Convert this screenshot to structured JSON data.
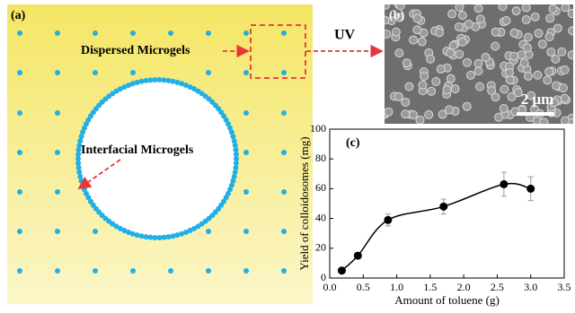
{
  "panel_a": {
    "label": "(a)",
    "dispersed": "Dispersed Microgels",
    "interfacial": "Interfacial Microgels",
    "uv": "UV"
  },
  "panel_b": {
    "label": "(b)",
    "scale_bar": "2 μm"
  },
  "chart_data": {
    "type": "scatter",
    "panel_label": "(c)",
    "x_label": "Amount of toluene (g)",
    "y_label": "Yield of colloidosomes (mg)",
    "x": [
      0.18,
      0.42,
      0.87,
      1.7,
      2.6,
      3.0
    ],
    "values": [
      5,
      15,
      39,
      48,
      63,
      60
    ],
    "errors": [
      1,
      2,
      4,
      5,
      8,
      8
    ],
    "color": "#000000",
    "xlim": [
      0,
      3.5
    ],
    "xticks": [
      {
        "value": 0,
        "label": "0.0"
      },
      0.5,
      {
        "value": 1,
        "label": "1.0"
      },
      1.5,
      {
        "value": 2,
        "label": "2.0"
      },
      2.5,
      {
        "value": 3,
        "label": "3.0"
      },
      3.5
    ],
    "ylim": [
      0,
      100
    ],
    "yticks": [
      0,
      20,
      40,
      60,
      80,
      100
    ]
  }
}
